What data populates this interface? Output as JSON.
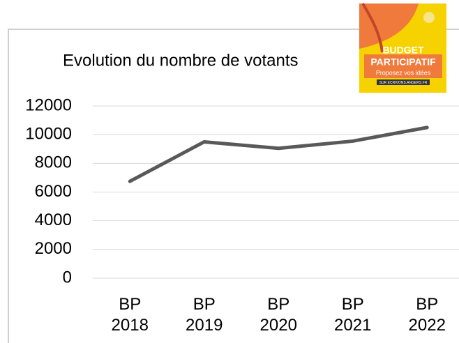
{
  "chart_data": {
    "type": "line",
    "title": "Evolution du nombre de votants",
    "categories": [
      "BP 2018",
      "BP 2019",
      "BP 2020",
      "BP 2021",
      "BP 2022"
    ],
    "values": [
      6750,
      9500,
      9050,
      9550,
      10500
    ],
    "color": "#595959",
    "ylim": [
      0,
      12000
    ],
    "yticks": [
      0,
      2000,
      4000,
      6000,
      8000,
      10000,
      12000
    ],
    "grid": true
  },
  "logo": {
    "line1": "BUDGET",
    "line2": "PARTICIPATIF",
    "line3": "Proposez vos idées",
    "line4": "SUR ECRIVONS.ANGERS.FR"
  }
}
